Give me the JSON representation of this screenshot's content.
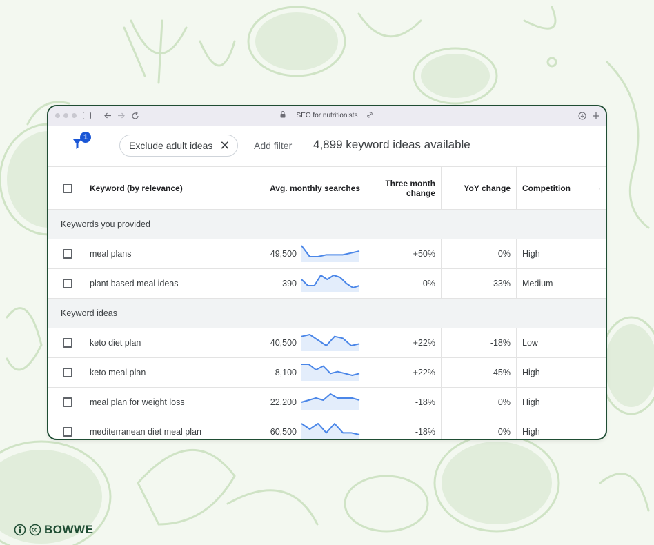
{
  "browser": {
    "tab_title": "SEO for nutritionists"
  },
  "toolbar": {
    "filter_badge": "1",
    "chip_label": "Exclude adult ideas",
    "chip_close": "✕",
    "add_filter": "Add filter",
    "ideas_count": "4,899 keyword ideas available"
  },
  "table": {
    "headers": {
      "keyword": "Keyword (by relevance)",
      "avg": "Avg. monthly searches",
      "three_month": "Three month change",
      "yoy": "YoY change",
      "competition": "Competition"
    },
    "sections": [
      {
        "title": "Keywords you provided",
        "rows": [
          {
            "keyword": "meal plans",
            "avg": "49,500",
            "three_month": "+50%",
            "yoy": "0%",
            "competition": "High",
            "trend": [
              9,
              3,
              3,
              4,
              4,
              4,
              5,
              6
            ]
          },
          {
            "keyword": "plant based meal ideas",
            "avg": "390",
            "three_month": "0%",
            "yoy": "-33%",
            "competition": "Medium",
            "trend": [
              6,
              3,
              3,
              8,
              6,
              8,
              7,
              4,
              2,
              3
            ]
          }
        ]
      },
      {
        "title": "Keyword ideas",
        "rows": [
          {
            "keyword": "keto diet plan",
            "avg": "40,500",
            "three_month": "+22%",
            "yoy": "-18%",
            "competition": "Low",
            "trend": [
              8,
              9,
              6,
              3,
              8,
              7,
              3,
              4
            ]
          },
          {
            "keyword": "keto meal plan",
            "avg": "8,100",
            "three_month": "+22%",
            "yoy": "-45%",
            "competition": "High",
            "trend": [
              9,
              9,
              6,
              8,
              4,
              5,
              4,
              3,
              4
            ]
          },
          {
            "keyword": "meal plan for weight loss",
            "avg": "22,200",
            "three_month": "-18%",
            "yoy": "0%",
            "competition": "High",
            "trend": [
              4,
              5,
              6,
              5,
              8,
              6,
              6,
              6,
              5
            ]
          },
          {
            "keyword": "mediterranean diet meal plan",
            "avg": "60,500",
            "three_month": "-18%",
            "yoy": "0%",
            "competition": "High",
            "trend": [
              9,
              6,
              9,
              4,
              9,
              4,
              4,
              3
            ]
          }
        ]
      }
    ]
  },
  "branding": {
    "logo_text": "BOWWE"
  },
  "colors": {
    "frame": "#1f4d33",
    "spark_line": "#4a86e8",
    "spark_fill": "#e3edfb",
    "badge": "#1a56d6",
    "background_art": "#cfe3c5"
  }
}
